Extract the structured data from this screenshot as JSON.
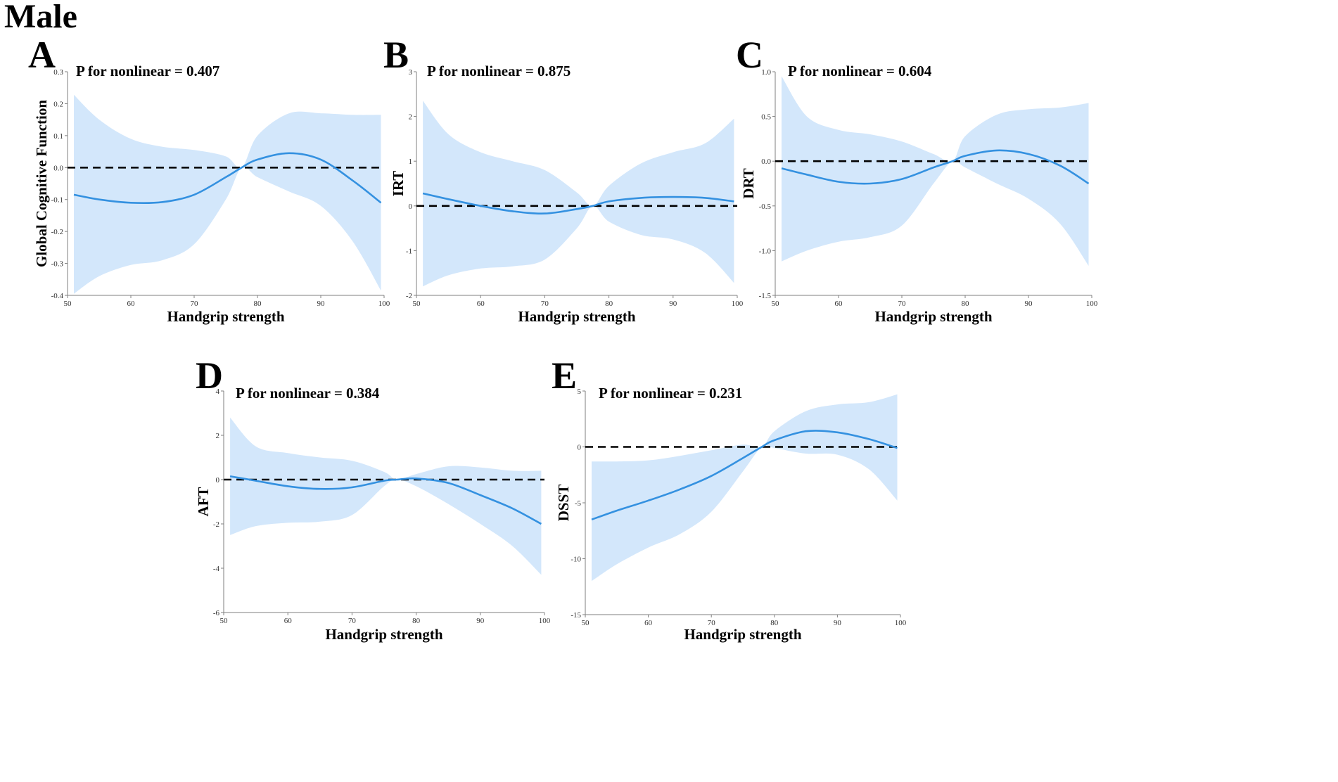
{
  "figure_title": "Male",
  "colors": {
    "band": "#d3e7fb",
    "curve": "#3491e0",
    "reference": "#000000",
    "axis": "#7f7f7f"
  },
  "chart_data": [
    {
      "id": "A",
      "type": "line",
      "letter": "A",
      "annotation": "P for nonlinear  = 0.407",
      "xlabel": "Handgrip strength",
      "ylabel": "Global Cognitive Function",
      "xlim": [
        50,
        100
      ],
      "ylim": [
        -0.4,
        0.3
      ],
      "xticks": [
        "50",
        "60",
        "70",
        "80",
        "90",
        "100"
      ],
      "yticks": [
        "-0.4",
        "-0.3",
        "-0.2",
        "-0.1",
        "0.0",
        "0.1",
        "0.2",
        "0.3"
      ],
      "reference_y": 0,
      "x": [
        51,
        55,
        60,
        65,
        70,
        75,
        77.5,
        80,
        85,
        90,
        95,
        99.5
      ],
      "y": [
        -0.085,
        -0.1,
        -0.11,
        -0.108,
        -0.085,
        -0.03,
        0,
        0.025,
        0.045,
        0.025,
        -0.04,
        -0.11
      ],
      "lower": [
        -0.395,
        -0.34,
        -0.305,
        -0.29,
        -0.24,
        -0.1,
        0,
        -0.03,
        -0.075,
        -0.12,
        -0.23,
        -0.385
      ],
      "upper": [
        0.228,
        0.15,
        0.09,
        0.065,
        0.055,
        0.035,
        0,
        0.1,
        0.17,
        0.17,
        0.165,
        0.165
      ]
    },
    {
      "id": "B",
      "type": "line",
      "letter": "B",
      "annotation": "P for nonlinear  = 0.875",
      "xlabel": "Handgrip strength",
      "ylabel": "IRT",
      "xlim": [
        50,
        100
      ],
      "ylim": [
        -2,
        3
      ],
      "xticks": [
        "50",
        "60",
        "70",
        "80",
        "90",
        "100"
      ],
      "yticks": [
        "-2",
        "-1",
        "0",
        "1",
        "2",
        "3"
      ],
      "reference_y": 0,
      "x": [
        51,
        55,
        60,
        65,
        70,
        75,
        77.5,
        80,
        85,
        90,
        95,
        99.5
      ],
      "y": [
        0.28,
        0.15,
        0.0,
        -0.12,
        -0.17,
        -0.07,
        0,
        0.1,
        0.18,
        0.2,
        0.18,
        0.1
      ],
      "lower": [
        -1.8,
        -1.55,
        -1.4,
        -1.35,
        -1.2,
        -0.5,
        0,
        -0.35,
        -0.65,
        -0.75,
        -1.05,
        -1.72
      ],
      "upper": [
        2.35,
        1.6,
        1.2,
        1.0,
        0.8,
        0.3,
        0,
        0.45,
        0.95,
        1.2,
        1.4,
        1.95
      ]
    },
    {
      "id": "C",
      "type": "line",
      "letter": "C",
      "annotation": "P for nonlinear  = 0.604",
      "xlabel": "Handgrip strength",
      "ylabel": "DRT",
      "xlim": [
        50,
        100
      ],
      "ylim": [
        -1.5,
        1.0
      ],
      "xticks": [
        "50",
        "60",
        "70",
        "80",
        "90",
        "100"
      ],
      "yticks": [
        "-1.5",
        "-1.0",
        "-0.5",
        "0.0",
        "0.5",
        "1.0"
      ],
      "reference_y": 0,
      "x": [
        51,
        55,
        60,
        65,
        70,
        75,
        78,
        80,
        85,
        90,
        95,
        99.5
      ],
      "y": [
        -0.08,
        -0.15,
        -0.23,
        -0.25,
        -0.2,
        -0.07,
        0,
        0.06,
        0.12,
        0.08,
        -0.05,
        -0.25
      ],
      "lower": [
        -1.12,
        -1.0,
        -0.9,
        -0.85,
        -0.72,
        -0.25,
        0,
        -0.07,
        -0.25,
        -0.42,
        -0.7,
        -1.17
      ],
      "upper": [
        0.95,
        0.5,
        0.35,
        0.3,
        0.22,
        0.08,
        0,
        0.28,
        0.52,
        0.58,
        0.6,
        0.65
      ]
    },
    {
      "id": "D",
      "type": "line",
      "letter": "D",
      "annotation": "P for nonlinear  = 0.384",
      "xlabel": "Handgrip strength",
      "ylabel": "AFT",
      "xlim": [
        50,
        100
      ],
      "ylim": [
        -6,
        4
      ],
      "xticks": [
        "50",
        "60",
        "70",
        "80",
        "90",
        "100"
      ],
      "yticks": [
        "-6",
        "-4",
        "-2",
        "0",
        "2",
        "4"
      ],
      "reference_y": 0,
      "x": [
        51,
        55,
        60,
        65,
        70,
        75,
        77,
        80,
        85,
        90,
        95,
        99.5
      ],
      "y": [
        0.15,
        -0.05,
        -0.3,
        -0.42,
        -0.35,
        -0.05,
        0,
        0.05,
        -0.15,
        -0.7,
        -1.3,
        -2.0
      ],
      "lower": [
        -2.5,
        -2.1,
        -1.95,
        -1.9,
        -1.6,
        -0.3,
        0,
        -0.3,
        -1.1,
        -2.0,
        -3.0,
        -4.3
      ],
      "upper": [
        2.8,
        1.5,
        1.2,
        1.0,
        0.85,
        0.35,
        0,
        0.25,
        0.6,
        0.55,
        0.4,
        0.4
      ]
    },
    {
      "id": "E",
      "type": "line",
      "letter": "E",
      "annotation": "P for nonlinear  = 0.231",
      "xlabel": "Handgrip strength",
      "ylabel": "DSST",
      "xlim": [
        50,
        100
      ],
      "ylim": [
        -15,
        5
      ],
      "xticks": [
        "50",
        "60",
        "70",
        "80",
        "90",
        "100"
      ],
      "yticks": [
        "-15",
        "-10",
        "-5",
        "0",
        "5"
      ],
      "reference_y": 0,
      "x": [
        51,
        55,
        60,
        65,
        70,
        75,
        78,
        80,
        85,
        90,
        95,
        99.5
      ],
      "y": [
        -6.5,
        -5.7,
        -4.8,
        -3.8,
        -2.6,
        -1.0,
        0,
        0.6,
        1.4,
        1.3,
        0.7,
        -0.1
      ],
      "lower": [
        -12.0,
        -10.5,
        -9.0,
        -7.8,
        -5.8,
        -2.2,
        0,
        -0.1,
        -0.6,
        -0.7,
        -2.0,
        -4.8
      ],
      "upper": [
        -1.3,
        -1.3,
        -1.2,
        -0.8,
        -0.3,
        0.2,
        0,
        1.4,
        3.2,
        3.8,
        4.0,
        4.7
      ]
    }
  ]
}
